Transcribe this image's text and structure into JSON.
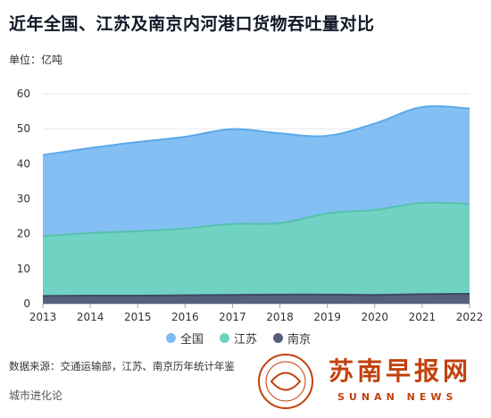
{
  "title": "近年全国、江苏及南京内河港口货物吞吐量对比",
  "unit_label": "单位：亿吨",
  "source": "数据来源：交通运输部，江苏、南京历年统计年鉴",
  "footer": "城市进化论",
  "logo": {
    "name": "苏南早报网",
    "sub": "SUNAN NEWS"
  },
  "colors": {
    "national": "#7cbcf2",
    "national_line": "#5aa9ea",
    "jiangsu": "#6fd3bf",
    "jiangsu_line": "#55c2ad",
    "nanjing": "#56607a",
    "nanjing_line": "#3f4862"
  },
  "chart_data": {
    "type": "area",
    "x": [
      "2013",
      "2014",
      "2015",
      "2016",
      "2017",
      "2018",
      "2019",
      "2020",
      "2021",
      "2022"
    ],
    "ylim": [
      0,
      60
    ],
    "yticks": [
      0,
      10,
      20,
      30,
      40,
      50,
      60
    ],
    "grid": true,
    "legend_position": "bottom",
    "series": [
      {
        "name": "全国",
        "values": [
          42.5,
          44.5,
          46.2,
          47.7,
          49.9,
          48.7,
          48.0,
          51.5,
          56.2,
          55.8
        ]
      },
      {
        "name": "江苏",
        "values": [
          19.3,
          20.2,
          20.7,
          21.5,
          22.8,
          23.0,
          25.8,
          26.8,
          28.8,
          28.5
        ]
      },
      {
        "name": "南京",
        "values": [
          2.2,
          2.3,
          2.3,
          2.4,
          2.5,
          2.6,
          2.6,
          2.5,
          2.7,
          2.8
        ]
      }
    ]
  }
}
